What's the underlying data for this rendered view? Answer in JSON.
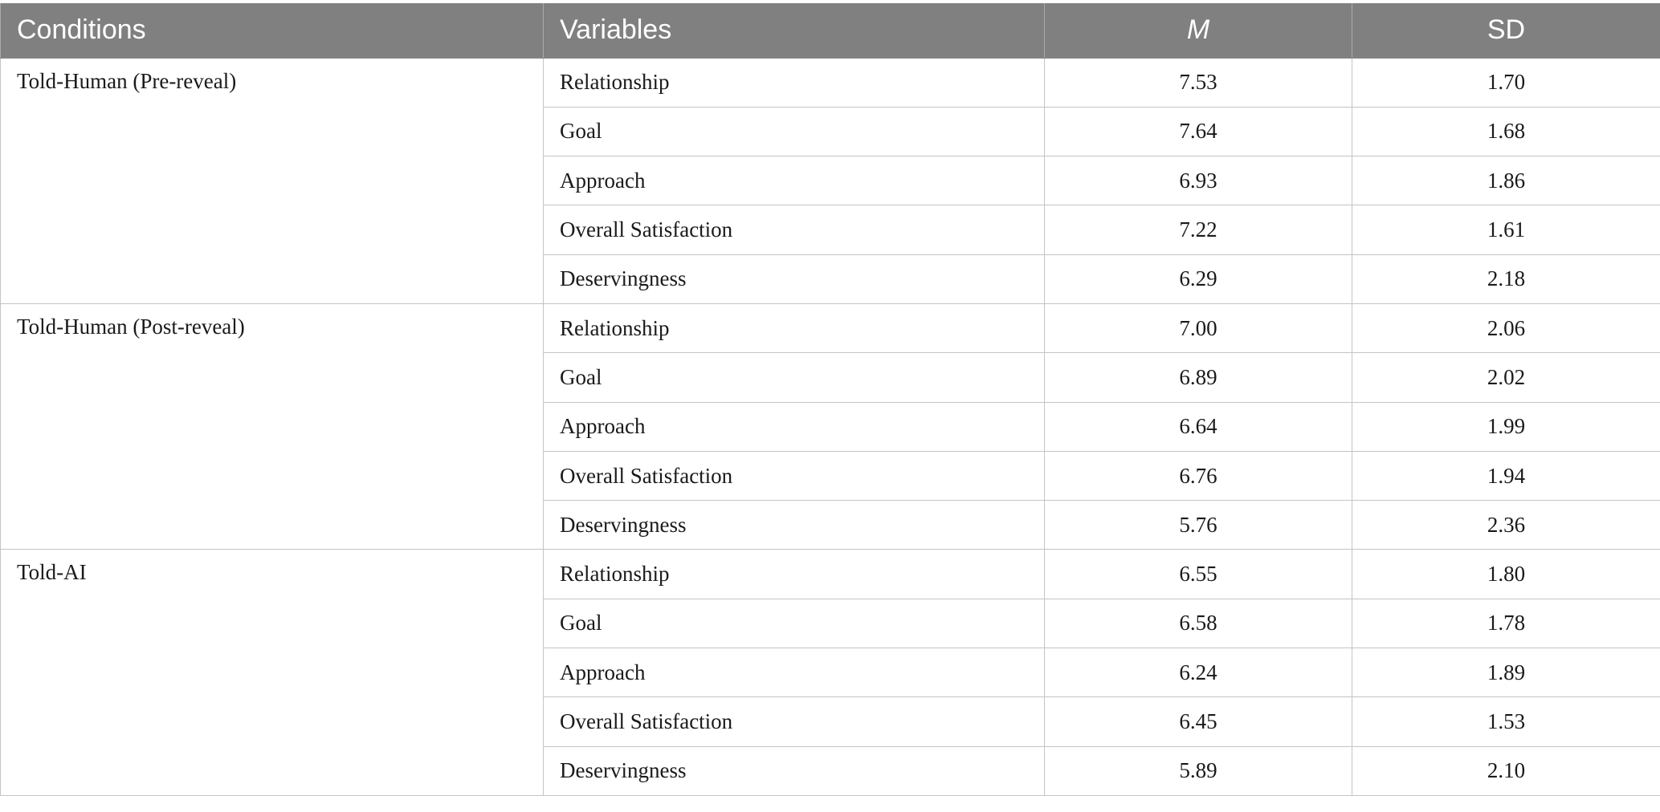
{
  "table": {
    "headers": {
      "conditions": "Conditions",
      "variables": "Variables",
      "mean": "M",
      "sd": "SD"
    },
    "groups": [
      {
        "condition": "Told-Human (Pre-reveal)",
        "rows": [
          {
            "variable": "Relationship",
            "m": "7.53",
            "sd": "1.70"
          },
          {
            "variable": "Goal",
            "m": "7.64",
            "sd": "1.68"
          },
          {
            "variable": "Approach",
            "m": "6.93",
            "sd": "1.86"
          },
          {
            "variable": "Overall Satisfaction",
            "m": "7.22",
            "sd": "1.61"
          },
          {
            "variable": "Deservingness",
            "m": "6.29",
            "sd": "2.18"
          }
        ]
      },
      {
        "condition": "Told-Human (Post-reveal)",
        "rows": [
          {
            "variable": "Relationship",
            "m": "7.00",
            "sd": "2.06"
          },
          {
            "variable": "Goal",
            "m": "6.89",
            "sd": "2.02"
          },
          {
            "variable": "Approach",
            "m": "6.64",
            "sd": "1.99"
          },
          {
            "variable": "Overall Satisfaction",
            "m": "6.76",
            "sd": "1.94"
          },
          {
            "variable": "Deservingness",
            "m": "5.76",
            "sd": "2.36"
          }
        ]
      },
      {
        "condition": "Told-AI",
        "rows": [
          {
            "variable": "Relationship",
            "m": "6.55",
            "sd": "1.80"
          },
          {
            "variable": "Goal",
            "m": "6.58",
            "sd": "1.78"
          },
          {
            "variable": "Approach",
            "m": "6.24",
            "sd": "1.89"
          },
          {
            "variable": "Overall Satisfaction",
            "m": "6.45",
            "sd": "1.53"
          },
          {
            "variable": "Deservingness",
            "m": "5.89",
            "sd": "2.10"
          }
        ]
      }
    ]
  }
}
